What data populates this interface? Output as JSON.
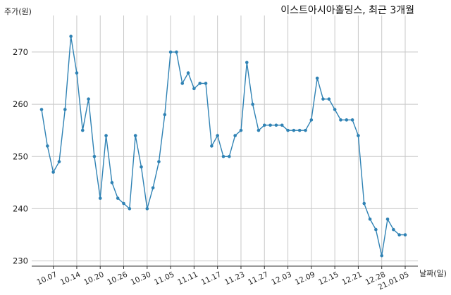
{
  "chart_data": {
    "type": "line",
    "title": "이스트아시아홀딩스, 최근 3개월",
    "xlabel": "날짜(일)",
    "ylabel": "주가(원)",
    "ylim": [
      229,
      277
    ],
    "yticks": [
      230,
      240,
      250,
      260,
      270
    ],
    "xtick_labels": [
      "10.07",
      "10.14",
      "10.20",
      "10.26",
      "10.30",
      "11.05",
      "11.11",
      "11.17",
      "11.23",
      "11.27",
      "12.03",
      "12.09",
      "12.15",
      "12.21",
      "12.28",
      "21.01.05"
    ],
    "xtick_indices": [
      2,
      6,
      10,
      14,
      18,
      22,
      26,
      30,
      34,
      38,
      42,
      46,
      50,
      54,
      58,
      62
    ],
    "grid": true,
    "series": [
      {
        "color": "#2f82b4",
        "values": [
          259,
          252,
          247,
          249,
          259,
          273,
          266,
          255,
          261,
          250,
          242,
          254,
          245,
          242,
          241,
          240,
          254,
          248,
          240,
          244,
          249,
          258,
          270,
          270,
          264,
          266,
          263,
          264,
          264,
          252,
          254,
          250,
          250,
          254,
          255,
          268,
          260,
          255,
          256,
          256,
          256,
          256,
          255,
          255,
          255,
          255,
          257,
          265,
          261,
          261,
          259,
          257,
          257,
          257,
          254,
          241,
          238,
          236,
          231,
          238,
          236,
          235,
          235
        ]
      }
    ]
  }
}
